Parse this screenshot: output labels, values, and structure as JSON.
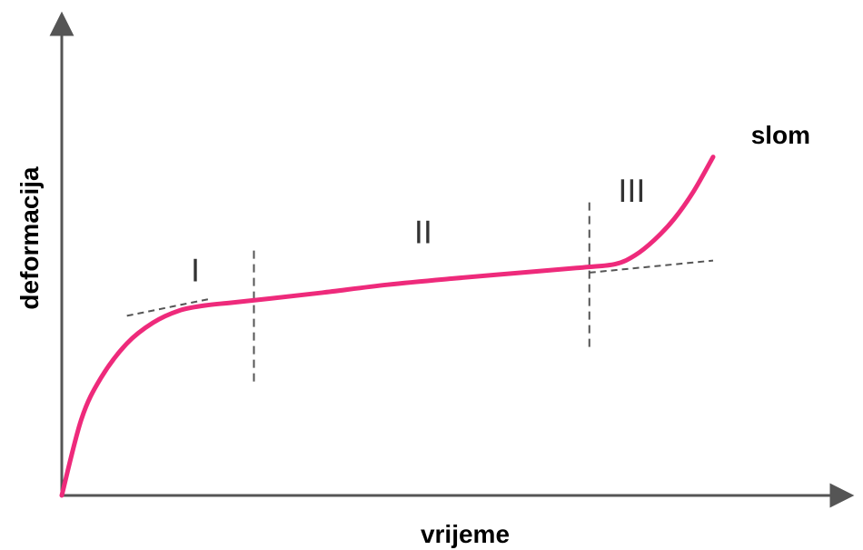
{
  "chart_data": {
    "type": "line",
    "xlabel": "vrijeme",
    "ylabel": "deformacija",
    "xlim": [
      0,
      100
    ],
    "ylim": [
      0,
      100
    ],
    "grid": false,
    "series": [
      {
        "color": "#ee2a7b",
        "x": [
          0,
          3,
          6,
          10,
          14,
          18,
          22,
          26,
          32,
          40,
          50,
          60,
          70,
          80,
          85,
          88,
          91,
          94,
          97,
          100
        ],
        "y": [
          0,
          22,
          34,
          44,
          50,
          53.5,
          55,
          55.8,
          57,
          58.7,
          61,
          62.8,
          64.4,
          66,
          67,
          69.5,
          74,
          80,
          88,
          98
        ]
      }
    ],
    "secondary_tangents": [
      {
        "x": [
          10,
          23
        ],
        "y": [
          52,
          57
        ],
        "style": "dashed",
        "color": "#555555"
      },
      {
        "x": [
          81,
          100
        ],
        "y": [
          64.5,
          68
        ],
        "style": "dashed",
        "color": "#555555"
      }
    ],
    "boundaries": [
      {
        "x": 29.5,
        "y_range": [
          33,
          72
        ],
        "style": "dashed",
        "color": "#555555"
      },
      {
        "x": 81,
        "y_range": [
          43,
          85
        ],
        "style": "dashed",
        "color": "#555555"
      }
    ],
    "regions": [
      {
        "label": "I",
        "x": 20.5,
        "y": 62
      },
      {
        "label": "II",
        "x": 55.5,
        "y": 73
      },
      {
        "label": "III",
        "x": 87.5,
        "y": 85
      }
    ],
    "annotations": [
      {
        "text": "slom",
        "x": 110,
        "y": 104
      }
    ]
  }
}
